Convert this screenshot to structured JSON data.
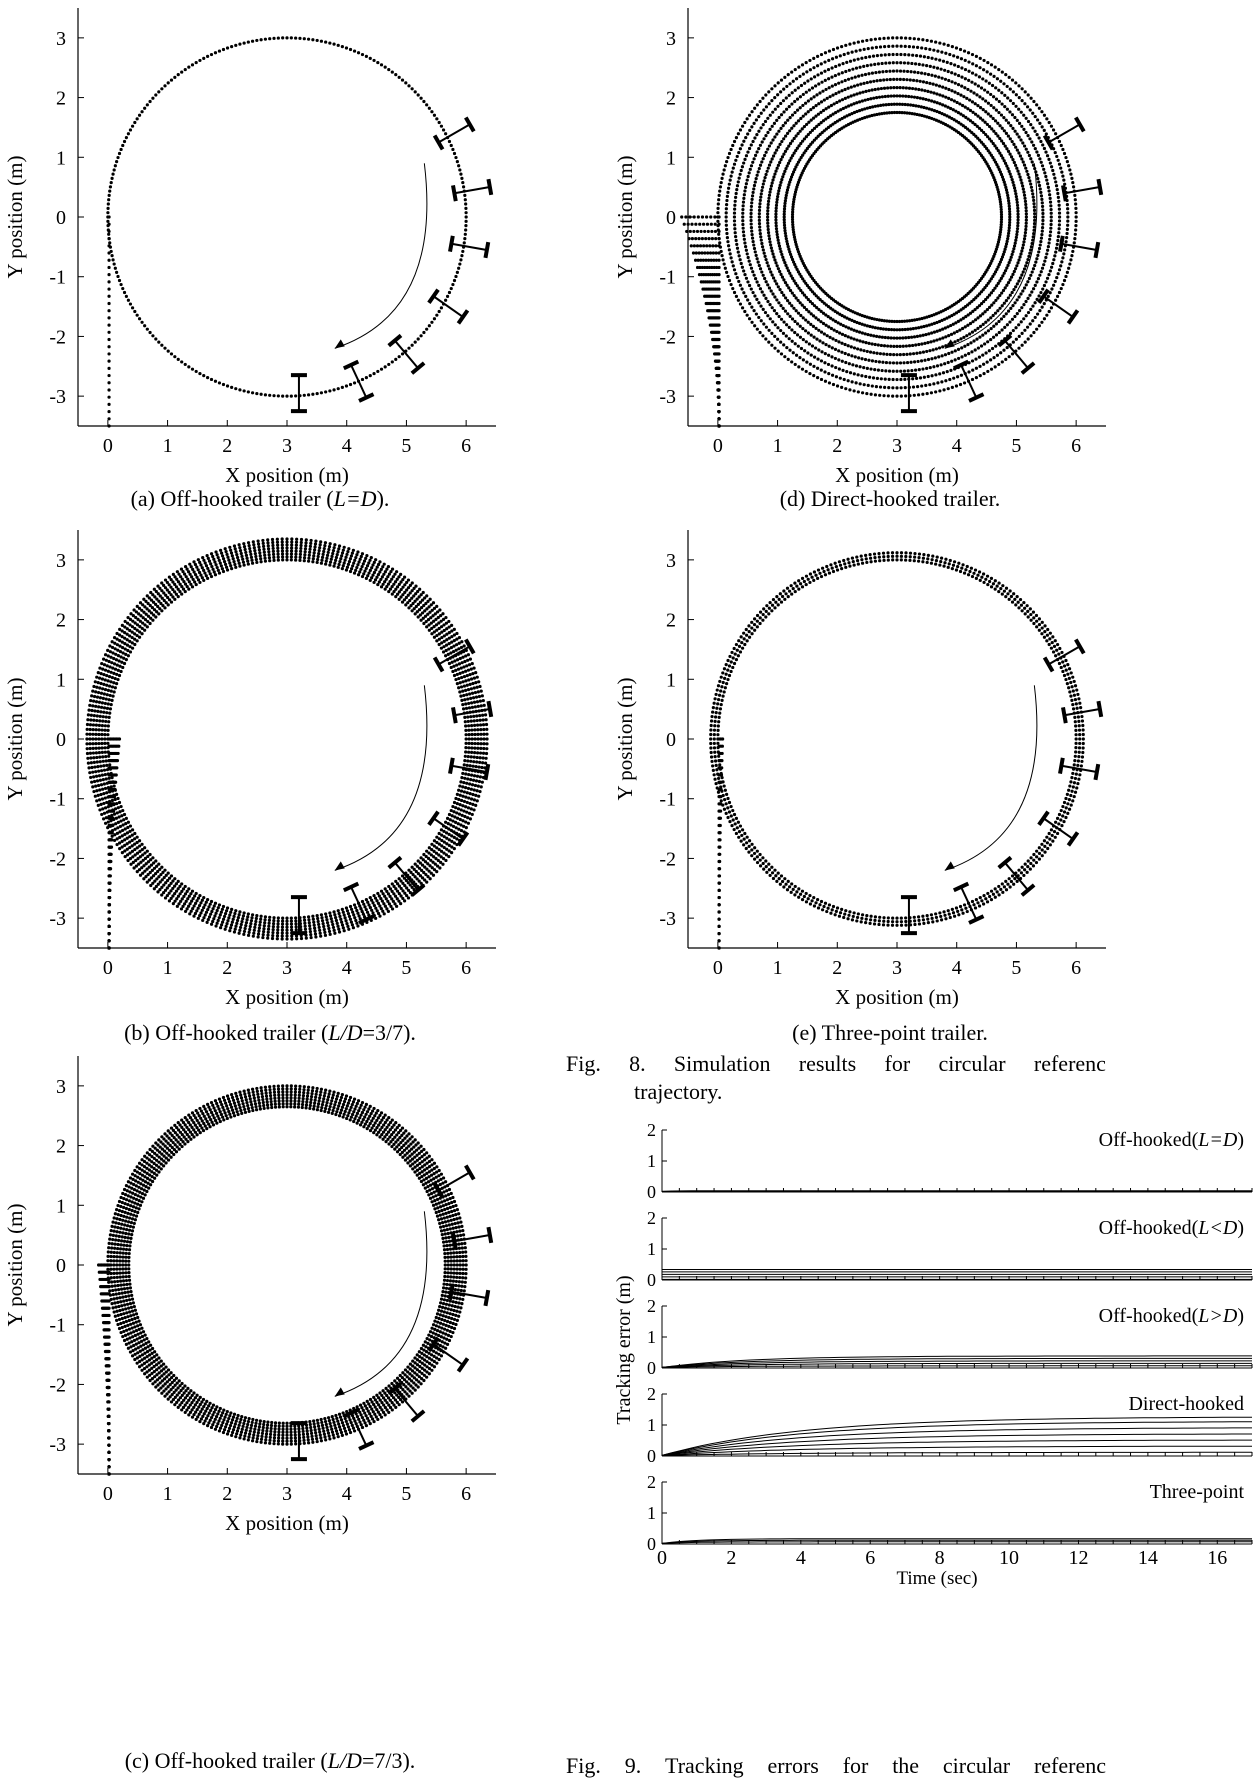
{
  "axes": {
    "x_label": "X position (m)",
    "y_label": "Y position (m)",
    "x_ticks": [
      "0",
      "1",
      "2",
      "3",
      "4",
      "5",
      "6"
    ],
    "y_ticks": [
      "3",
      "2",
      "1",
      "0",
      "-1",
      "-2",
      "-3"
    ]
  },
  "captions": {
    "a": {
      "pre": "(a) Off-hooked trailer (",
      "it": "L=D",
      "post": ")."
    },
    "b": {
      "pre": "(b) Off-hooked trailer (",
      "it": "L/D",
      "post": "=3/7)."
    },
    "c": {
      "pre": "(c) Off-hooked trailer (",
      "it": "L/D",
      "post": "=7/3)."
    },
    "d": "(d) Direct-hooked trailer.",
    "e": "(e) Three-point trailer."
  },
  "fig8": {
    "label": "Fig.",
    "num": "8.",
    "words": [
      "Simulation",
      "results",
      "for",
      "circular",
      "referenc"
    ],
    "line2": "trajectory."
  },
  "fig9": {
    "label": "Fig.",
    "num": "9.",
    "words": [
      "Tracking",
      "errors",
      "for",
      "the",
      "circular",
      "referenc"
    ]
  },
  "tracking": {
    "y_label": "Tracking error (m)",
    "x_label": "Time (sec)",
    "x_ticks": [
      "0",
      "2",
      "4",
      "6",
      "8",
      "10",
      "12",
      "14",
      "16"
    ],
    "y_ticks": [
      "2",
      "1",
      "0"
    ]
  },
  "chart_data": [
    {
      "type": "scatter",
      "id": "a",
      "title": "Off-hooked trailer (L=D)",
      "xlabel": "X position (m)",
      "ylabel": "Y position (m)",
      "xlim": [
        -0.5,
        6.5
      ],
      "ylim": [
        -3.5,
        3.5
      ],
      "circle": {
        "cx": 3,
        "cy": 0,
        "r": 3
      },
      "rings": 1,
      "spread": 0
    },
    {
      "type": "scatter",
      "id": "b",
      "title": "Off-hooked trailer (L/D=3/7)",
      "xlabel": "X position (m)",
      "ylabel": "Y position (m)",
      "xlim": [
        -0.5,
        6.5
      ],
      "ylim": [
        -3.5,
        3.5
      ],
      "circle": {
        "cx": 3,
        "cy": 0,
        "r": 3
      },
      "rings": 8,
      "spread": 0.35
    },
    {
      "type": "scatter",
      "id": "c",
      "title": "Off-hooked trailer (L/D=7/3)",
      "xlabel": "X position (m)",
      "ylabel": "Y position (m)",
      "xlim": [
        -0.5,
        6.5
      ],
      "ylim": [
        -3.5,
        3.5
      ],
      "circle": {
        "cx": 3,
        "cy": 0,
        "r": 3
      },
      "rings": 8,
      "spread": -0.35
    },
    {
      "type": "scatter",
      "id": "d",
      "title": "Direct-hooked trailer",
      "xlabel": "X position (m)",
      "ylabel": "Y position (m)",
      "xlim": [
        -0.5,
        6.5
      ],
      "ylim": [
        -3.5,
        3.5
      ],
      "circle": {
        "cx": 3,
        "cy": 0,
        "r": 3
      },
      "rings": 10,
      "spread": -1.25
    },
    {
      "type": "scatter",
      "id": "e",
      "title": "Three-point trailer",
      "xlabel": "X position (m)",
      "ylabel": "Y position (m)",
      "xlim": [
        -0.5,
        6.5
      ],
      "ylim": [
        -3.5,
        3.5
      ],
      "circle": {
        "cx": 3,
        "cy": 0,
        "r": 3
      },
      "rings": 3,
      "spread": 0.12
    },
    {
      "type": "line",
      "id": "tracking",
      "xlabel": "Time (sec)",
      "ylabel": "Tracking error (m)",
      "xlim": [
        0,
        17
      ],
      "ylim": [
        0,
        2
      ],
      "panels": [
        {
          "label": "Off-hooked",
          "cond": "L=D",
          "finals": [
            0.0,
            0.02
          ],
          "rise": 0.3
        },
        {
          "label": "Off-hooked",
          "cond": "L<D",
          "finals": [
            0.02,
            0.1,
            0.18,
            0.26,
            0.34
          ],
          "rise": 0
        },
        {
          "label": "Off-hooked",
          "cond": "L>D",
          "finals": [
            0.05,
            0.13,
            0.21,
            0.29,
            0.37
          ],
          "rise": 2.5
        },
        {
          "label": "Direct-hooked",
          "cond": "",
          "finals": [
            0.1,
            0.3,
            0.5,
            0.7,
            0.9,
            1.1,
            1.25
          ],
          "rise": 4.0
        },
        {
          "label": "Three-point",
          "cond": "",
          "finals": [
            0.05,
            0.1,
            0.15
          ],
          "rise": 1.0
        }
      ]
    }
  ]
}
